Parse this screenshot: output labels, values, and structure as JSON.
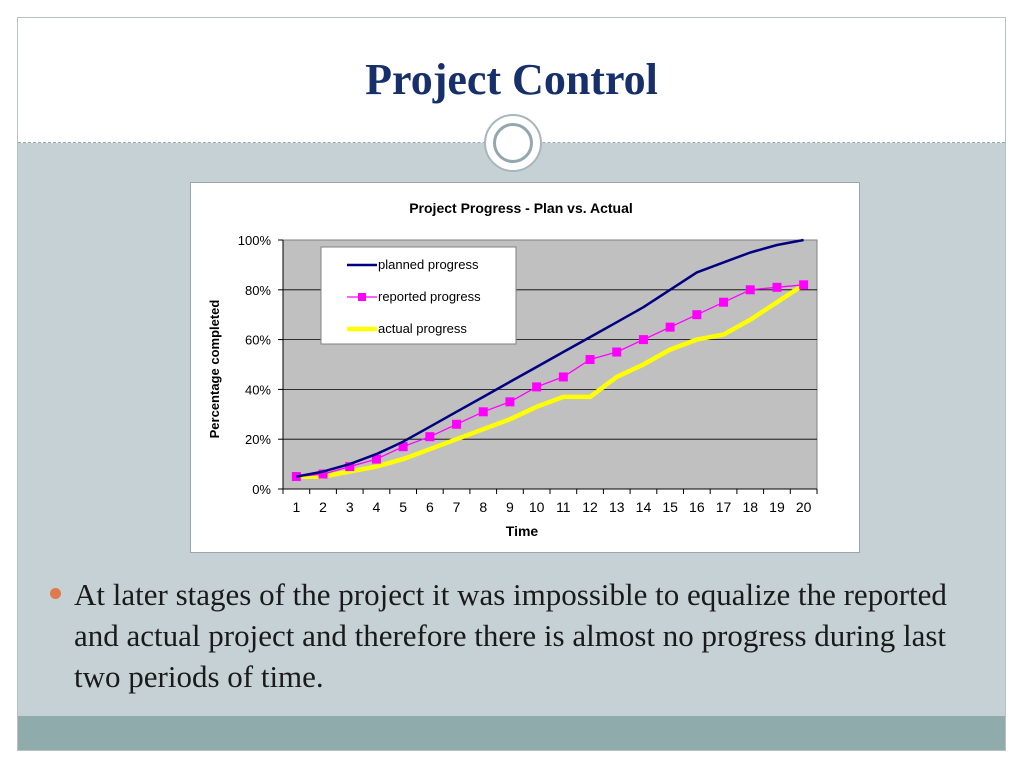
{
  "slide": {
    "title": "Project Control",
    "bullet": "At later stages of the project it was impossible to equalize the reported and actual project and therefore there is almost no progress during last two periods of time."
  },
  "colors": {
    "title": "#17306b",
    "background": "#c5d1d5",
    "footer": "#8fabab",
    "bullet_dot": "#e07a4e",
    "plot_area": "#c0c0c0",
    "planned": "#000080",
    "reported": "#ff00ff",
    "actual": "#ffff00"
  },
  "chart_data": {
    "type": "line",
    "title": "Project Progress - Plan vs. Actual",
    "xlabel": "Time",
    "ylabel": "Percentage completed",
    "x": [
      1,
      2,
      3,
      4,
      5,
      6,
      7,
      8,
      9,
      10,
      11,
      12,
      13,
      14,
      15,
      16,
      17,
      18,
      19,
      20
    ],
    "ylim": [
      0,
      100
    ],
    "yticks": [
      "0%",
      "20%",
      "40%",
      "60%",
      "80%",
      "100%"
    ],
    "grid": true,
    "legend_position": "top-left",
    "series": [
      {
        "name": "planned progress",
        "color": "#000080",
        "marker": "none",
        "values": [
          5,
          7,
          10,
          14,
          19,
          25,
          31,
          37,
          43,
          49,
          55,
          61,
          67,
          73,
          80,
          87,
          91,
          95,
          98,
          100
        ]
      },
      {
        "name": "reported progress",
        "color": "#ff00ff",
        "marker": "square",
        "values": [
          5,
          6,
          9,
          12,
          17,
          21,
          26,
          31,
          35,
          41,
          45,
          52,
          55,
          60,
          65,
          70,
          75,
          80,
          81,
          82
        ]
      },
      {
        "name": "actual progress",
        "color": "#ffff00",
        "marker": "none",
        "values": [
          5,
          5,
          7,
          9,
          12,
          16,
          20,
          24,
          28,
          33,
          37,
          37,
          45,
          50,
          56,
          60,
          62,
          68,
          75,
          82
        ]
      }
    ]
  }
}
